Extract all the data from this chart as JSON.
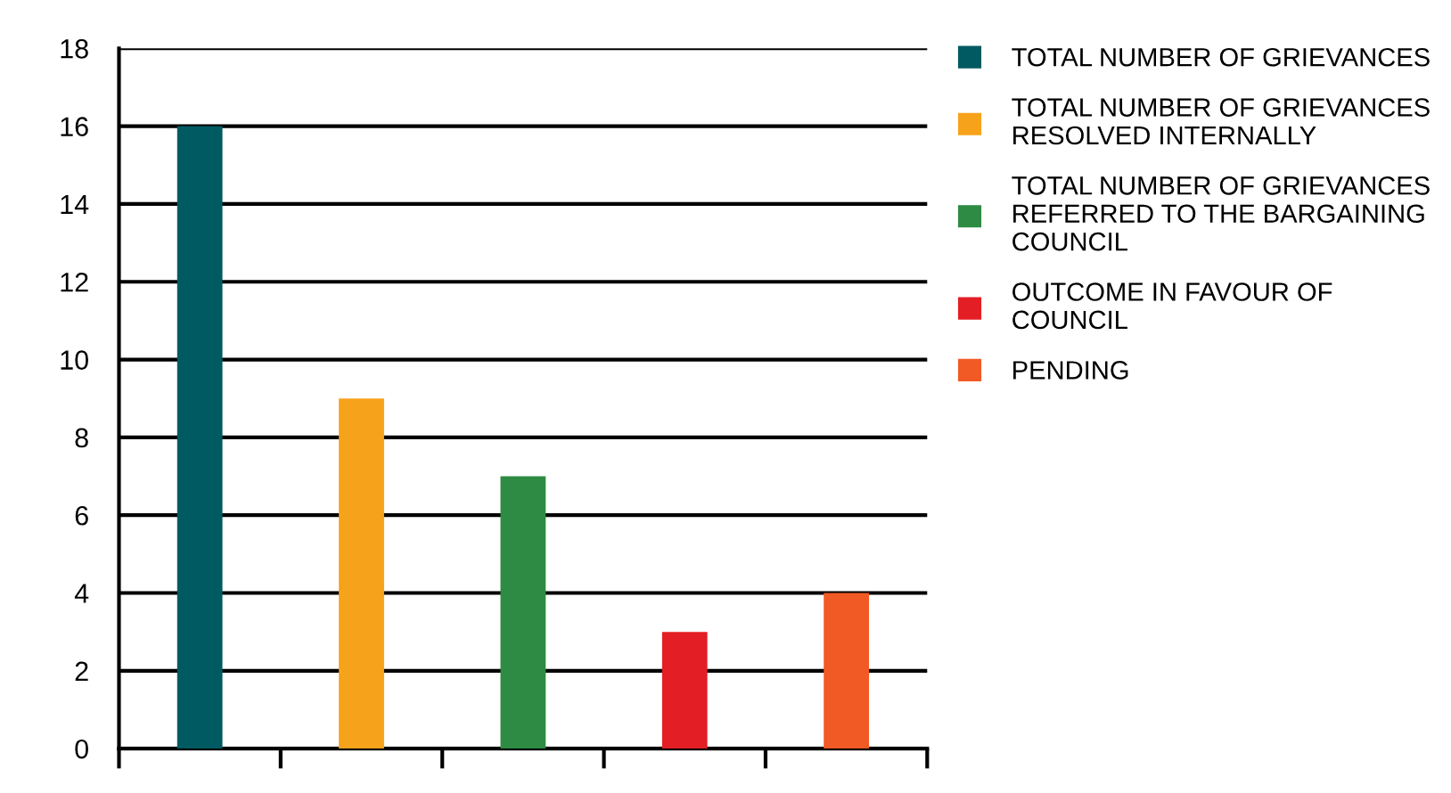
{
  "chart_data": {
    "type": "bar",
    "categories": [
      null,
      null,
      null,
      null,
      null
    ],
    "series": [
      {
        "name": "TOTAL NUMBER OF GRIEVANCES",
        "color": "#005a62",
        "values": [
          16,
          null,
          null,
          null,
          null
        ]
      },
      {
        "name": "TOTAL NUMBER OF GRIEVANCES RESOLVED INTERNALLY",
        "color": "#f7a21b",
        "values": [
          null,
          9,
          null,
          null,
          null
        ]
      },
      {
        "name": "TOTAL NUMBER OF GRIEVANCES REFERRED TO THE BARGAINING COUNCIL",
        "color": "#2e8b43",
        "values": [
          null,
          null,
          7,
          null,
          null
        ]
      },
      {
        "name": "OUTCOME IN FAVOUR OF COUNCIL",
        "color": "#e31e24",
        "values": [
          null,
          null,
          null,
          3,
          null
        ]
      },
      {
        "name": "PENDING",
        "color": "#f15a24",
        "values": [
          null,
          null,
          null,
          null,
          4
        ]
      }
    ],
    "ylim": [
      0,
      18
    ],
    "yticks": [
      0,
      2,
      4,
      6,
      8,
      10,
      12,
      14,
      16,
      18
    ],
    "grid": "y",
    "legend": "top right"
  }
}
